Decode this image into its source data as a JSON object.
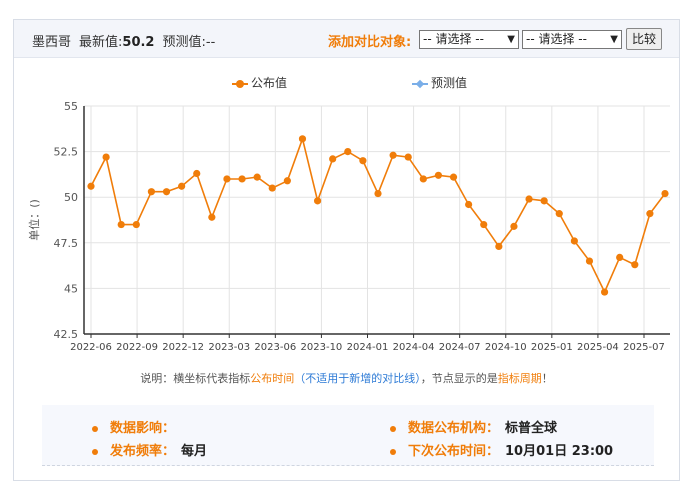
{
  "header": {
    "country": "墨西哥",
    "latest_label": "最新值:",
    "latest_value": "50.2",
    "forecast_label": "预测值:",
    "forecast_value": "--",
    "compare_label": "添加对比对象:",
    "select1": "-- 请选择 --",
    "select2": "-- 请选择 --",
    "compare_button": "比较"
  },
  "legend": {
    "published": "公布值",
    "forecast": "预测值"
  },
  "colors": {
    "series": "#f07d0a",
    "forecast": "#7aaee8",
    "grid": "#e3e3e3",
    "axis": "#333333"
  },
  "note": {
    "prefix": "说明：横坐标代表指标",
    "h1": "公布时间",
    "h2": "（不适用于新增的对比线）",
    "mid": "，节点显示的是",
    "h3": "指标周期",
    "suffix": "！"
  },
  "info": {
    "impact_label": "数据影响：",
    "impact_value": "",
    "freq_label": "发布频率：",
    "freq_value": "每月",
    "org_label": "数据公布机构：",
    "org_value": "标普全球",
    "next_label": "下次公布时间：",
    "next_value": "10月01日 23:00"
  },
  "chart_data": {
    "type": "line",
    "ylabel": "单位：()",
    "ylim": [
      42.5,
      55
    ],
    "yticks": [
      42.5,
      45,
      47.5,
      50,
      52.5,
      55
    ],
    "yticklabels": [
      "42.5",
      "45",
      "47.5",
      "50",
      "52.5",
      "55"
    ],
    "xticklabels": [
      "2022-06",
      "2022-09",
      "2022-12",
      "2023-03",
      "2023-06",
      "2023-10",
      "2024-01",
      "2024-04",
      "2024-07",
      "2024-10",
      "2025-01",
      "2025-04",
      "2025-07"
    ],
    "grid": true,
    "series": [
      {
        "name": "公布值",
        "values": [
          50.6,
          52.2,
          48.5,
          48.5,
          50.3,
          50.3,
          50.6,
          51.3,
          48.9,
          51.0,
          51.0,
          51.1,
          50.5,
          50.9,
          53.2,
          49.8,
          52.1,
          52.5,
          52.0,
          50.2,
          52.3,
          52.2,
          51.0,
          51.2,
          51.1,
          49.6,
          48.5,
          47.3,
          48.4,
          49.9,
          49.8,
          49.1,
          47.6,
          46.5,
          44.8,
          46.7,
          46.3,
          49.1,
          50.2
        ]
      }
    ]
  }
}
